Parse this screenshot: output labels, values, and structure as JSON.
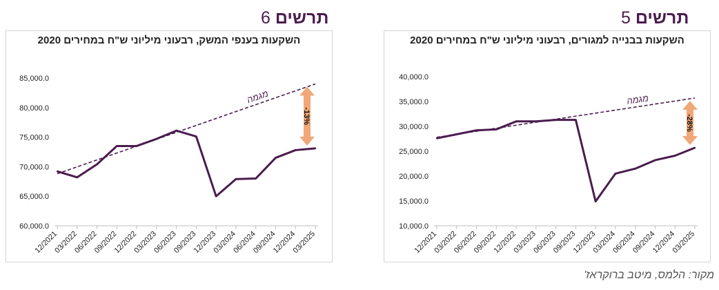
{
  "panels": {
    "left": {
      "figure_word": "תרשים",
      "figure_number": "6"
    },
    "right": {
      "figure_word": "תרשים",
      "figure_number": "5"
    }
  },
  "source": "מקור: הלמס, מיטב ברוקראז'",
  "colors": {
    "line": "#4a1c4e",
    "trend": "#4a1c4e",
    "arrow": "#f0a878",
    "grid": "#d9d9d9"
  },
  "chart_data": [
    {
      "id": "left",
      "type": "line",
      "title": "השקעות בענפי המשק, רבעוני מיליוני ש\"ח במחירים 2020",
      "x": [
        "12/2021",
        "03/2022",
        "06/2022",
        "09/2022",
        "12/2022",
        "03/2023",
        "06/2023",
        "09/2023",
        "12/2023",
        "03/2024",
        "06/2024",
        "09/2024",
        "12/2024",
        "03/2025"
      ],
      "x_tick_labels": [
        "12/2021",
        "03/2022",
        "06/2022",
        "09/2022",
        "12/2022",
        "03/2023",
        "06/2023",
        "09/2023",
        "12/2023",
        "03/2024",
        "06/2024",
        "09/2024",
        "12/2024",
        "03/2025"
      ],
      "series": [
        {
          "values": [
            69200,
            68200,
            70400,
            73500,
            73500,
            74700,
            76100,
            75100,
            65000,
            67900,
            68000,
            71500,
            72800,
            73100
          ]
        }
      ],
      "trend": {
        "label": "מגמה",
        "start": 68800,
        "end": 84000
      },
      "gap_label": "-13%",
      "ylim": [
        60000,
        85000
      ],
      "y_ticks": [
        60000,
        65000,
        70000,
        75000,
        80000,
        85000
      ],
      "y_tick_labels": [
        "60,000.0",
        "65,000.0",
        "70,000.0",
        "75,000.0",
        "80,000.0",
        "85,000.0"
      ],
      "grid": false
    },
    {
      "id": "right",
      "type": "line",
      "title": "השקעות בבנייה למגורים, רבעוני מיליוני ש\"ח במחירים 2020",
      "x": [
        "12/2021",
        "03/2022",
        "06/2022",
        "09/2022",
        "12/2022",
        "03/2023",
        "06/2023",
        "09/2023",
        "12/2023",
        "03/2024",
        "06/2024",
        "09/2024",
        "12/2024",
        "03/2025"
      ],
      "x_tick_labels": [
        "12/2021",
        "03/2022",
        "06/2022",
        "09/2022",
        "12/2022",
        "03/2023",
        "06/2023",
        "09/2023",
        "12/2023",
        "03/2024",
        "06/2024",
        "09/2024",
        "12/2024",
        "03/2025"
      ],
      "series": [
        {
          "values": [
            27600,
            28400,
            29200,
            29400,
            31000,
            31000,
            31300,
            31300,
            14900,
            20500,
            21500,
            23200,
            24100,
            25700
          ]
        }
      ],
      "trend": {
        "label": "מגמה",
        "start": 27800,
        "end": 35700
      },
      "gap_label": "-28%",
      "ylim": [
        10000,
        40000
      ],
      "y_ticks": [
        10000,
        15000,
        20000,
        25000,
        30000,
        35000,
        40000
      ],
      "y_tick_labels": [
        "10,000.0",
        "15,000.0",
        "20,000.0",
        "25,000.0",
        "30,000.0",
        "35,000.0",
        "40,000.0"
      ],
      "grid": false
    }
  ]
}
